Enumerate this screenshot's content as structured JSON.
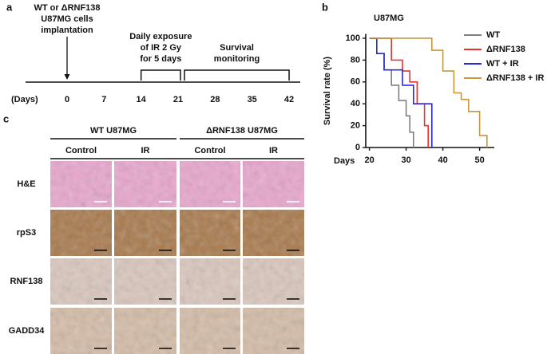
{
  "panel_a": {
    "label": "a",
    "axis_label": "(Days)",
    "days": [
      0,
      7,
      14,
      21,
      28,
      35,
      42
    ],
    "events": [
      {
        "lines": [
          "WT or ΔRNF138",
          "U87MG cells",
          "implantation"
        ],
        "day": 0
      },
      {
        "lines": [
          "Daily exposure",
          "of IR 2 Gy",
          "for 5 days"
        ],
        "from": 14,
        "to": 21
      },
      {
        "lines": [
          "Survival",
          "monitoring"
        ],
        "from": 21,
        "to": 42
      }
    ]
  },
  "chart_data": {
    "type": "step",
    "label": "b",
    "title": "U87MG",
    "x_label": "Days",
    "y_label": "Survival rate (%)",
    "xlim": [
      19,
      54
    ],
    "ylim": [
      0,
      104
    ],
    "xticks": [
      20,
      30,
      40,
      50
    ],
    "yticks": [
      0,
      20,
      40,
      60,
      80,
      100
    ],
    "series": [
      {
        "name": "WT",
        "color": "#7f7f7f",
        "x": [
          20,
          22,
          24,
          26,
          28,
          30,
          31,
          32
        ],
        "values": [
          100,
          86,
          71,
          57,
          43,
          29,
          14,
          0
        ]
      },
      {
        "name": "ΔRNF138",
        "color": "#e8312b",
        "x": [
          20,
          26,
          29,
          31,
          33,
          35,
          36
        ],
        "values": [
          100,
          80,
          70,
          60,
          40,
          20,
          0
        ]
      },
      {
        "name": "WT + IR",
        "color": "#2b2bd8",
        "x": [
          20,
          22,
          24,
          29,
          32,
          37
        ],
        "values": [
          100,
          86,
          71,
          57,
          40,
          0
        ]
      },
      {
        "name": "ΔRNF138 + IR",
        "color": "#c8963c",
        "x": [
          20,
          37,
          40,
          43,
          45,
          47,
          50,
          52
        ],
        "values": [
          100,
          89,
          70,
          50,
          44,
          33,
          11,
          0
        ]
      }
    ]
  },
  "panel_c": {
    "label": "c",
    "groups": [
      "WT U87MG",
      "ΔRNF138 U87MG"
    ],
    "columns": [
      "Control",
      "IR",
      "Control",
      "IR"
    ],
    "rows": [
      "H&E",
      "rpS3",
      "RNF138",
      "GADD34"
    ]
  }
}
